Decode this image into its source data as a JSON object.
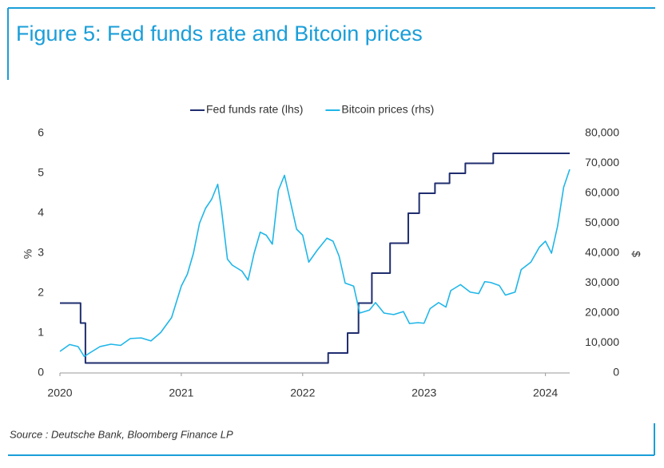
{
  "chart_data": {
    "type": "line",
    "title": "Figure 5: Fed funds rate and Bitcoin prices",
    "source": "Source : Deutsche Bank, Bloomberg Finance LP",
    "ylabel": "%",
    "y2label": "$",
    "xlim": [
      2020,
      2024.2
    ],
    "xticks": [
      2020,
      2021,
      2022,
      2023,
      2024
    ],
    "ylim": [
      0,
      6
    ],
    "yticks": [
      0,
      1,
      2,
      3,
      4,
      5,
      6
    ],
    "y2lim": [
      0,
      80000
    ],
    "y2ticks": [
      {
        "value": 0,
        "label": "0"
      },
      {
        "value": 10000,
        "label": "10,000"
      },
      {
        "value": 20000,
        "label": "20,000"
      },
      {
        "value": 30000,
        "label": "30,000"
      },
      {
        "value": 40000,
        "label": "40,000"
      },
      {
        "value": 50000,
        "label": "50,000"
      },
      {
        "value": 60000,
        "label": "60,000"
      },
      {
        "value": 70000,
        "label": "70,000"
      },
      {
        "value": 80000,
        "label": "80,000"
      }
    ],
    "legend": "top",
    "series": [
      {
        "name": "Fed funds rate (lhs)",
        "color": "#1f2d6e",
        "step": true,
        "x": [
          2020.0,
          2020.17,
          2020.21,
          2022.21,
          2022.37,
          2022.46,
          2022.57,
          2022.72,
          2022.87,
          2022.96,
          2023.09,
          2023.21,
          2023.34,
          2023.57,
          2024.2
        ],
        "values": [
          1.75,
          1.25,
          0.25,
          0.5,
          1.0,
          1.75,
          2.5,
          3.25,
          4.0,
          4.5,
          4.75,
          5.0,
          5.25,
          5.5,
          5.5
        ]
      },
      {
        "name": "Bitcoin prices (rhs)",
        "color": "#1fb6e8",
        "axis": "y2",
        "x": [
          2020.0,
          2020.08,
          2020.15,
          2020.2,
          2020.25,
          2020.33,
          2020.42,
          2020.5,
          2020.58,
          2020.67,
          2020.75,
          2020.83,
          2020.92,
          2021.0,
          2021.05,
          2021.1,
          2021.15,
          2021.2,
          2021.25,
          2021.3,
          2021.33,
          2021.38,
          2021.42,
          2021.5,
          2021.55,
          2021.6,
          2021.65,
          2021.7,
          2021.75,
          2021.8,
          2021.85,
          2021.9,
          2021.95,
          2022.0,
          2022.05,
          2022.12,
          2022.2,
          2022.25,
          2022.3,
          2022.35,
          2022.42,
          2022.47,
          2022.55,
          2022.6,
          2022.67,
          2022.75,
          2022.83,
          2022.88,
          2022.95,
          2023.0,
          2023.05,
          2023.12,
          2023.18,
          2023.22,
          2023.3,
          2023.38,
          2023.45,
          2023.5,
          2023.55,
          2023.62,
          2023.67,
          2023.75,
          2023.8,
          2023.88,
          2023.95,
          2024.0,
          2024.05,
          2024.1,
          2024.15,
          2024.2
        ],
        "values": [
          7200,
          9500,
          8800,
          5500,
          6800,
          8800,
          9600,
          9200,
          11500,
          11700,
          10700,
          13500,
          18500,
          29000,
          33000,
          40000,
          50000,
          55000,
          58000,
          63000,
          55000,
          38000,
          36000,
          34000,
          31000,
          40000,
          47000,
          46000,
          43000,
          61000,
          66000,
          57000,
          48000,
          46000,
          37000,
          41000,
          45000,
          44000,
          39000,
          30000,
          29000,
          20000,
          21000,
          23500,
          20000,
          19500,
          20500,
          16500,
          16800,
          16600,
          21500,
          23500,
          22000,
          27500,
          29500,
          27000,
          26500,
          30500,
          30200,
          29200,
          26000,
          27000,
          34500,
          37000,
          42000,
          44000,
          40000,
          49000,
          62000,
          68000
        ]
      }
    ]
  }
}
